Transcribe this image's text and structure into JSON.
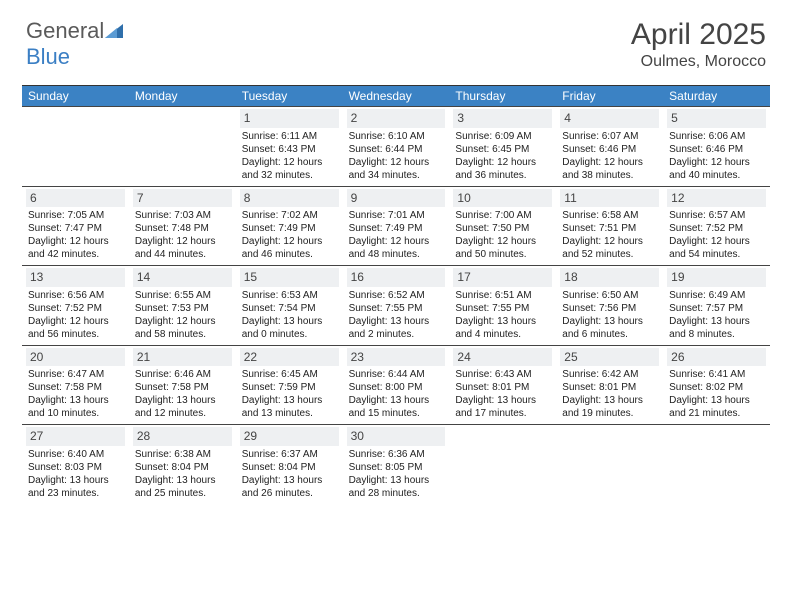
{
  "logo": {
    "text1": "General",
    "text2": "Blue"
  },
  "title": "April 2025",
  "location": "Oulmes, Morocco",
  "colors": {
    "header_bg": "#3b82c4",
    "daynum_bg": "#eef0f2",
    "rule": "#444444"
  },
  "dayNames": [
    "Sunday",
    "Monday",
    "Tuesday",
    "Wednesday",
    "Thursday",
    "Friday",
    "Saturday"
  ],
  "weeks": [
    [
      null,
      null,
      {
        "n": "1",
        "sr": "6:11 AM",
        "ss": "6:43 PM",
        "dl": "12 hours and 32 minutes."
      },
      {
        "n": "2",
        "sr": "6:10 AM",
        "ss": "6:44 PM",
        "dl": "12 hours and 34 minutes."
      },
      {
        "n": "3",
        "sr": "6:09 AM",
        "ss": "6:45 PM",
        "dl": "12 hours and 36 minutes."
      },
      {
        "n": "4",
        "sr": "6:07 AM",
        "ss": "6:46 PM",
        "dl": "12 hours and 38 minutes."
      },
      {
        "n": "5",
        "sr": "6:06 AM",
        "ss": "6:46 PM",
        "dl": "12 hours and 40 minutes."
      }
    ],
    [
      {
        "n": "6",
        "sr": "7:05 AM",
        "ss": "7:47 PM",
        "dl": "12 hours and 42 minutes."
      },
      {
        "n": "7",
        "sr": "7:03 AM",
        "ss": "7:48 PM",
        "dl": "12 hours and 44 minutes."
      },
      {
        "n": "8",
        "sr": "7:02 AM",
        "ss": "7:49 PM",
        "dl": "12 hours and 46 minutes."
      },
      {
        "n": "9",
        "sr": "7:01 AM",
        "ss": "7:49 PM",
        "dl": "12 hours and 48 minutes."
      },
      {
        "n": "10",
        "sr": "7:00 AM",
        "ss": "7:50 PM",
        "dl": "12 hours and 50 minutes."
      },
      {
        "n": "11",
        "sr": "6:58 AM",
        "ss": "7:51 PM",
        "dl": "12 hours and 52 minutes."
      },
      {
        "n": "12",
        "sr": "6:57 AM",
        "ss": "7:52 PM",
        "dl": "12 hours and 54 minutes."
      }
    ],
    [
      {
        "n": "13",
        "sr": "6:56 AM",
        "ss": "7:52 PM",
        "dl": "12 hours and 56 minutes."
      },
      {
        "n": "14",
        "sr": "6:55 AM",
        "ss": "7:53 PM",
        "dl": "12 hours and 58 minutes."
      },
      {
        "n": "15",
        "sr": "6:53 AM",
        "ss": "7:54 PM",
        "dl": "13 hours and 0 minutes."
      },
      {
        "n": "16",
        "sr": "6:52 AM",
        "ss": "7:55 PM",
        "dl": "13 hours and 2 minutes."
      },
      {
        "n": "17",
        "sr": "6:51 AM",
        "ss": "7:55 PM",
        "dl": "13 hours and 4 minutes."
      },
      {
        "n": "18",
        "sr": "6:50 AM",
        "ss": "7:56 PM",
        "dl": "13 hours and 6 minutes."
      },
      {
        "n": "19",
        "sr": "6:49 AM",
        "ss": "7:57 PM",
        "dl": "13 hours and 8 minutes."
      }
    ],
    [
      {
        "n": "20",
        "sr": "6:47 AM",
        "ss": "7:58 PM",
        "dl": "13 hours and 10 minutes."
      },
      {
        "n": "21",
        "sr": "6:46 AM",
        "ss": "7:58 PM",
        "dl": "13 hours and 12 minutes."
      },
      {
        "n": "22",
        "sr": "6:45 AM",
        "ss": "7:59 PM",
        "dl": "13 hours and 13 minutes."
      },
      {
        "n": "23",
        "sr": "6:44 AM",
        "ss": "8:00 PM",
        "dl": "13 hours and 15 minutes."
      },
      {
        "n": "24",
        "sr": "6:43 AM",
        "ss": "8:01 PM",
        "dl": "13 hours and 17 minutes."
      },
      {
        "n": "25",
        "sr": "6:42 AM",
        "ss": "8:01 PM",
        "dl": "13 hours and 19 minutes."
      },
      {
        "n": "26",
        "sr": "6:41 AM",
        "ss": "8:02 PM",
        "dl": "13 hours and 21 minutes."
      }
    ],
    [
      {
        "n": "27",
        "sr": "6:40 AM",
        "ss": "8:03 PM",
        "dl": "13 hours and 23 minutes."
      },
      {
        "n": "28",
        "sr": "6:38 AM",
        "ss": "8:04 PM",
        "dl": "13 hours and 25 minutes."
      },
      {
        "n": "29",
        "sr": "6:37 AM",
        "ss": "8:04 PM",
        "dl": "13 hours and 26 minutes."
      },
      {
        "n": "30",
        "sr": "6:36 AM",
        "ss": "8:05 PM",
        "dl": "13 hours and 28 minutes."
      },
      null,
      null,
      null
    ]
  ],
  "labels": {
    "sunrise": "Sunrise: ",
    "sunset": "Sunset: ",
    "daylight": "Daylight: "
  }
}
